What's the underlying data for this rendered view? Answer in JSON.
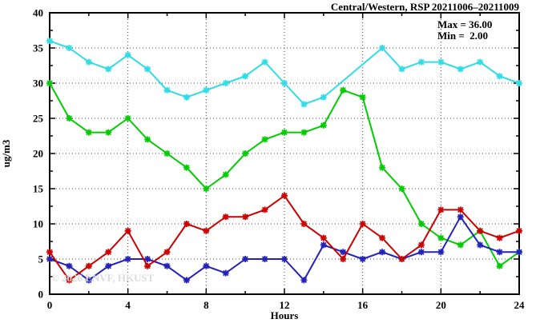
{
  "title": "Central/Western, RSP 20211006–20211009",
  "annotation": {
    "max_label": "Max = 36.00",
    "min_label": "Min =  2.00"
  },
  "watermark": "© 2026 ENVF, HKUST",
  "chart_data": {
    "type": "line",
    "title": "Central/Western, RSP 20211006–20211009",
    "xlabel": "Hours",
    "ylabel": "ug/m3",
    "xlim": [
      0,
      24
    ],
    "ylim": [
      0,
      40
    ],
    "x_major_ticks": [
      0,
      4,
      8,
      12,
      16,
      20,
      24
    ],
    "x_minor_step": 2,
    "y_major_step": 5,
    "y_minor_step": 2.5,
    "grid": true,
    "legend": "none",
    "max_value": 36.0,
    "min_value": 2.0,
    "x": [
      0,
      1,
      2,
      3,
      4,
      5,
      6,
      7,
      8,
      9,
      10,
      11,
      12,
      13,
      14,
      15,
      16,
      17,
      18,
      19,
      20,
      21,
      22,
      23,
      24
    ],
    "series": [
      {
        "name": "cyan-series",
        "color": "#2edde6",
        "values": [
          36,
          35,
          33,
          32,
          34,
          32,
          29,
          28,
          29,
          30,
          31,
          33,
          30,
          27,
          28,
          30.33,
          32.67,
          35,
          32,
          33,
          33,
          32,
          33,
          31,
          30
        ],
        "no_marker_at": [
          15,
          16
        ]
      },
      {
        "name": "green-series",
        "color": "#00cc00",
        "values": [
          30,
          25,
          23,
          23,
          25,
          22,
          20,
          18,
          15,
          17,
          20,
          22,
          23,
          23,
          24,
          29,
          28,
          18,
          15,
          10,
          8,
          7,
          9,
          4,
          6
        ]
      },
      {
        "name": "blue-series",
        "color": "#2222bb",
        "values": [
          5,
          4,
          2,
          4,
          5,
          5,
          4,
          2,
          4,
          3,
          5,
          5,
          5,
          2,
          7,
          6,
          5,
          6,
          5,
          6,
          6,
          11,
          7,
          6,
          6
        ]
      },
      {
        "name": "red-series",
        "color": "#cc0000",
        "values": [
          6,
          2,
          4,
          6,
          9,
          4,
          6,
          10,
          9,
          11,
          11,
          12,
          14,
          10,
          8,
          5,
          10,
          8,
          5,
          7,
          12,
          12,
          9,
          8,
          9
        ]
      }
    ]
  }
}
